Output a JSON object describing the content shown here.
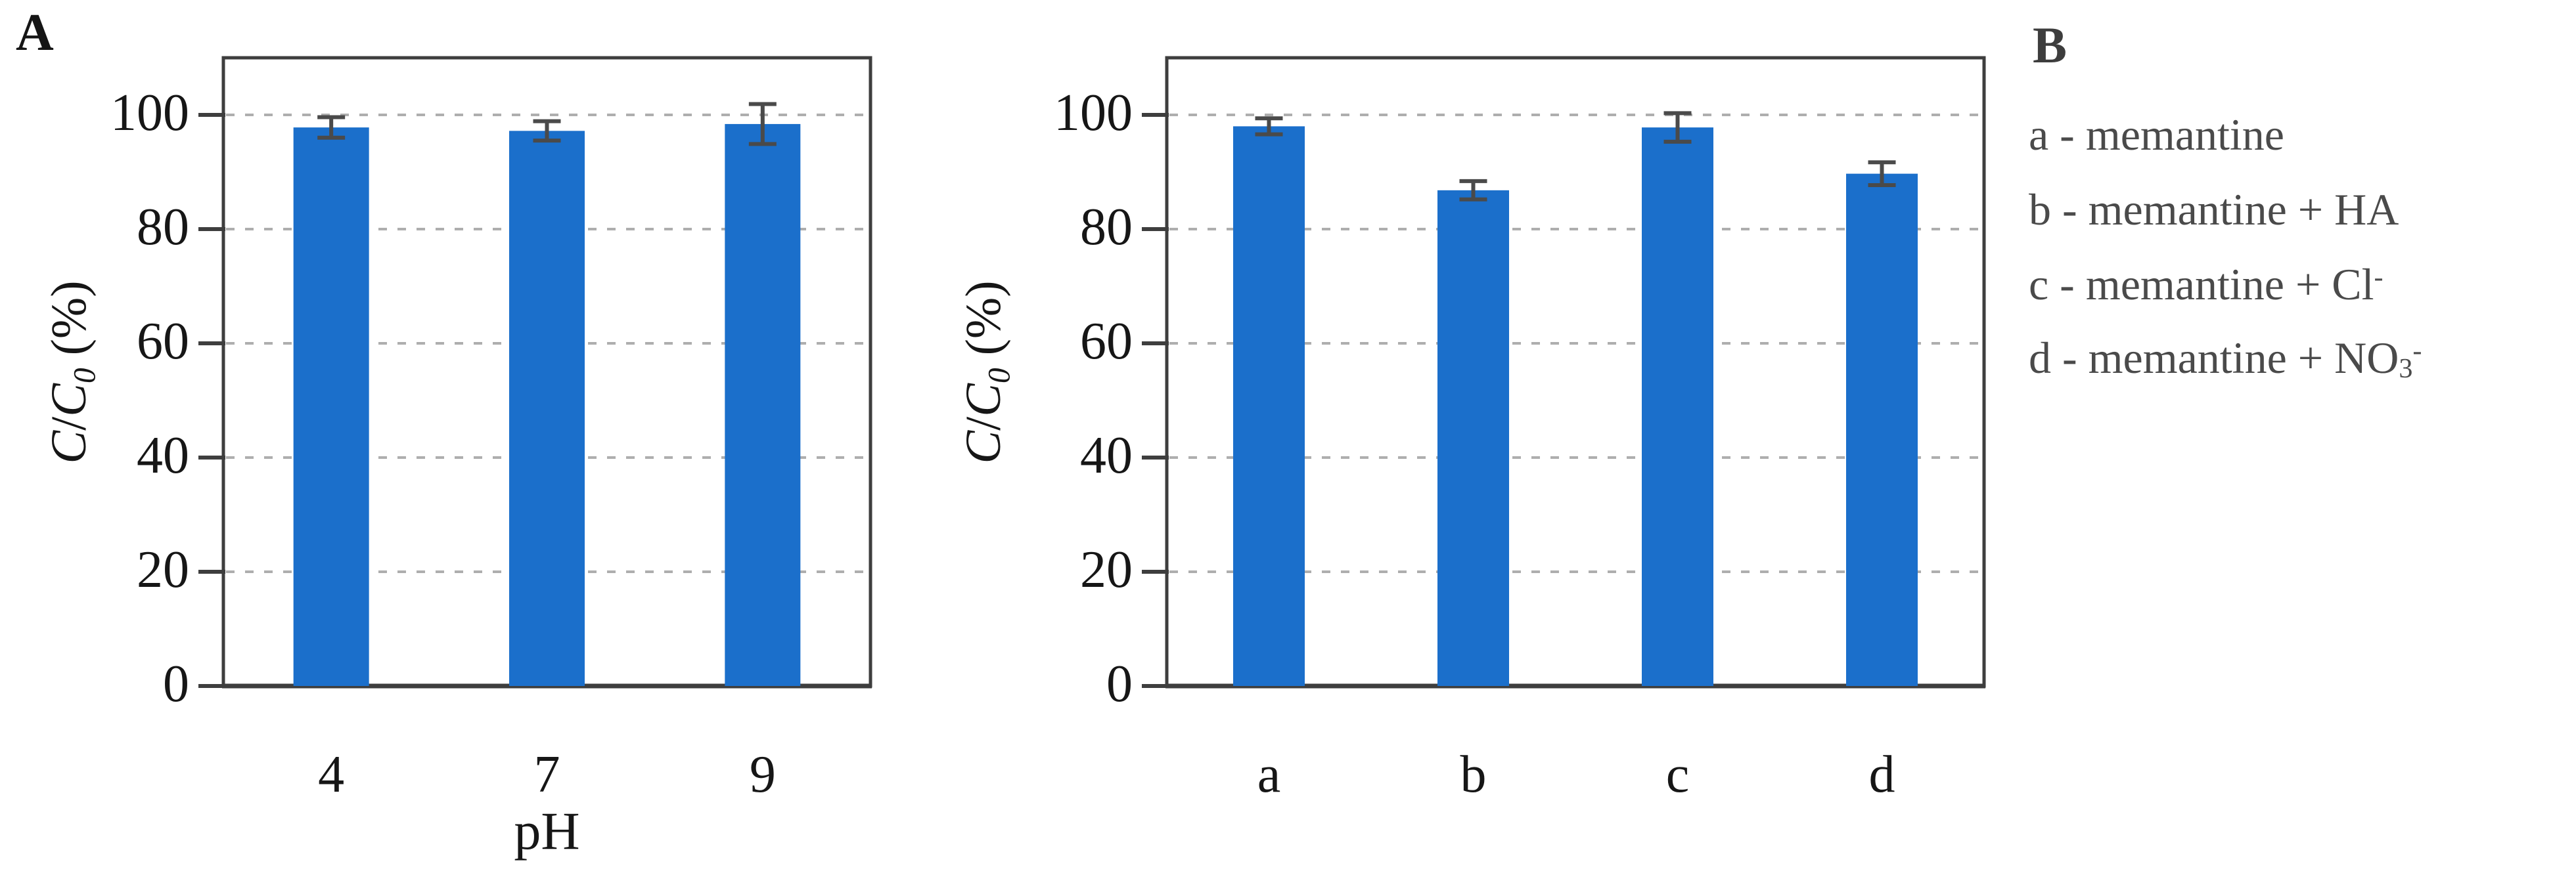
{
  "figure_background": "#ffffff",
  "colors": {
    "bar": "#1b6fcb",
    "error_bar": "#4a4a4a",
    "axis_border": "#3e3e3e",
    "gridline": "#aeaeae",
    "tick_text": "#161616",
    "legend_text": "#4a4a4a",
    "panel_a_label": "#151515",
    "panel_b_label": "#3d3d3d"
  },
  "chart_data": [
    {
      "type": "bar",
      "panel_label": "A",
      "title": "",
      "categories": [
        "4",
        "7",
        "9"
      ],
      "values": [
        97.8,
        97.2,
        98.4
      ],
      "errors": [
        1.8,
        1.7,
        3.5
      ],
      "xlabel": "pH",
      "ylabel": "C/C0 (%)",
      "ylabel_segments": [
        {
          "t": "C",
          "i": true
        },
        {
          "t": "/"
        },
        {
          "t": "C",
          "i": true
        },
        {
          "t": "0",
          "i": true,
          "sub": true
        },
        {
          "t": " (%)"
        }
      ],
      "yticks": [
        0,
        20,
        40,
        60,
        80,
        100
      ],
      "ytick_labels": [
        "0",
        "20",
        "40",
        "60",
        "80",
        "100"
      ],
      "ylim": [
        0,
        110
      ],
      "grid": "horizontal-dashed",
      "legend_position": "none"
    },
    {
      "type": "bar",
      "panel_label": "B",
      "title": "",
      "categories": [
        "a",
        "b",
        "c",
        "d"
      ],
      "values": [
        98.0,
        86.8,
        97.8,
        89.7
      ],
      "errors": [
        1.4,
        1.6,
        2.5,
        2.0
      ],
      "xlabel": "",
      "ylabel": "C/C0 (%)",
      "ylabel_segments": [
        {
          "t": "C",
          "i": true
        },
        {
          "t": "/"
        },
        {
          "t": "C",
          "i": true
        },
        {
          "t": "0",
          "i": true,
          "sub": true
        },
        {
          "t": " (%)"
        }
      ],
      "yticks": [
        0,
        20,
        40,
        60,
        80,
        100
      ],
      "ytick_labels": [
        "0",
        "20",
        "40",
        "60",
        "80",
        "100"
      ],
      "ylim": [
        0,
        110
      ],
      "grid": "horizontal-dashed",
      "legend_position": "right"
    }
  ],
  "legend": {
    "panel_label": "B",
    "items": [
      {
        "text": "a - memantine",
        "segments": [
          {
            "t": "a - memantine"
          }
        ]
      },
      {
        "text": "b - memantine + HA",
        "segments": [
          {
            "t": "b - memantine + HA"
          }
        ]
      },
      {
        "text": "c - memantine + Cl-",
        "segments": [
          {
            "t": "c - memantine + Cl"
          },
          {
            "t": "-",
            "sup": true
          }
        ]
      },
      {
        "text": "d - memantine + NO3-",
        "segments": [
          {
            "t": "d - memantine + NO"
          },
          {
            "t": "3",
            "sub": true
          },
          {
            "t": "-",
            "sup": true
          }
        ]
      }
    ]
  }
}
